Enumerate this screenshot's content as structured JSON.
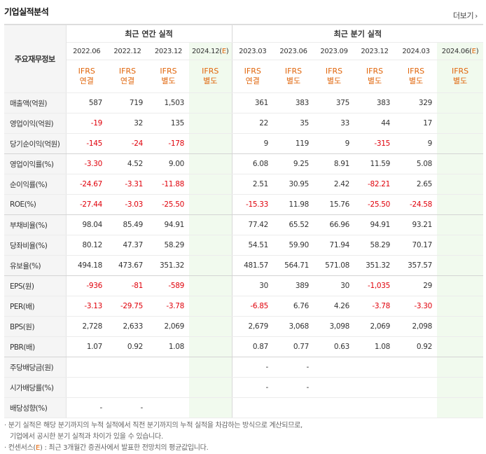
{
  "section_title": "기업실적분석",
  "more_link": "더보기",
  "header": {
    "row_label": "주요재무정보",
    "annual_group": "최근 연간 실적",
    "quarter_group": "최근 분기 실적",
    "annual_periods": [
      "2022.06",
      "2022.12",
      "2023.12",
      "2024.12(E)"
    ],
    "quarter_periods": [
      "2023.03",
      "2023.06",
      "2023.09",
      "2023.12",
      "2024.03",
      "2024.06(E)"
    ],
    "standards": [
      [
        "IFRS",
        "연결"
      ],
      [
        "IFRS",
        "연결"
      ],
      [
        "IFRS",
        "별도"
      ],
      [
        "IFRS",
        "별도"
      ],
      [
        "IFRS",
        "연결"
      ],
      [
        "IFRS",
        "별도"
      ],
      [
        "IFRS",
        "별도"
      ],
      [
        "IFRS",
        "별도"
      ],
      [
        "IFRS",
        "별도"
      ],
      [
        "IFRS",
        "별도"
      ]
    ]
  },
  "rows": [
    {
      "label": "매출액(억원)",
      "values": [
        "587",
        "719",
        "1,503",
        "",
        "361",
        "383",
        "375",
        "383",
        "329",
        ""
      ]
    },
    {
      "label": "영업이익(억원)",
      "values": [
        "-19",
        "32",
        "135",
        "",
        "22",
        "35",
        "33",
        "44",
        "17",
        ""
      ]
    },
    {
      "label": "당기순이익(억원)",
      "values": [
        "-145",
        "-24",
        "-178",
        "",
        "9",
        "119",
        "9",
        "-315",
        "9",
        ""
      ]
    },
    {
      "label": "영업이익률(%)",
      "values": [
        "-3.30",
        "4.52",
        "9.00",
        "",
        "6.08",
        "9.25",
        "8.91",
        "11.59",
        "5.08",
        ""
      ]
    },
    {
      "label": "순이익률(%)",
      "values": [
        "-24.67",
        "-3.31",
        "-11.88",
        "",
        "2.51",
        "30.95",
        "2.42",
        "-82.21",
        "2.65",
        ""
      ]
    },
    {
      "label": "ROE(%)",
      "values": [
        "-27.44",
        "-3.03",
        "-25.50",
        "",
        "-15.33",
        "11.98",
        "15.76",
        "-25.50",
        "-24.58",
        ""
      ]
    },
    {
      "label": "부채비율(%)",
      "values": [
        "98.04",
        "85.49",
        "94.91",
        "",
        "77.42",
        "65.52",
        "66.96",
        "94.91",
        "93.21",
        ""
      ]
    },
    {
      "label": "당좌비율(%)",
      "values": [
        "80.12",
        "47.37",
        "58.29",
        "",
        "54.51",
        "59.90",
        "71.94",
        "58.29",
        "70.17",
        ""
      ]
    },
    {
      "label": "유보율(%)",
      "values": [
        "494.18",
        "473.67",
        "351.32",
        "",
        "481.57",
        "564.71",
        "571.08",
        "351.32",
        "357.57",
        ""
      ]
    },
    {
      "label": "EPS(원)",
      "values": [
        "-936",
        "-81",
        "-589",
        "",
        "30",
        "389",
        "30",
        "-1,035",
        "29",
        ""
      ]
    },
    {
      "label": "PER(배)",
      "values": [
        "-3.13",
        "-29.75",
        "-3.78",
        "",
        "-6.85",
        "6.76",
        "4.26",
        "-3.78",
        "-3.30",
        ""
      ]
    },
    {
      "label": "BPS(원)",
      "values": [
        "2,728",
        "2,633",
        "2,069",
        "",
        "2,679",
        "3,068",
        "3,098",
        "2,069",
        "2,098",
        ""
      ]
    },
    {
      "label": "PBR(배)",
      "values": [
        "1.07",
        "0.92",
        "1.08",
        "",
        "0.87",
        "0.77",
        "0.63",
        "1.08",
        "0.92",
        ""
      ]
    },
    {
      "label": "주당배당금(원)",
      "values": [
        "",
        "",
        "",
        "",
        "-",
        "-",
        "",
        "",
        "",
        ""
      ]
    },
    {
      "label": "시가배당률(%)",
      "values": [
        "",
        "",
        "",
        "",
        "-",
        "-",
        "",
        "",
        "",
        ""
      ]
    },
    {
      "label": "배당성향(%)",
      "values": [
        "-",
        "-",
        "",
        "",
        "",
        "",
        "",
        "",
        "",
        ""
      ]
    }
  ],
  "notes": {
    "line1": "분기 실적은 해당 분기까지의 누적 실적에서 직전 분기까지의 누적 실적을 차감하는 방식으로 계산되므로,",
    "line2": "기업에서 공시한 분기 실적과 차이가 있을 수 있습니다.",
    "line3_prefix": "컨센서스(",
    "line3_e": "E",
    "line3_suffix": ") : 최근 3개월간 증권사에서 발표한 전망치의 평균값입니다."
  },
  "colors": {
    "negative": "#e0000a",
    "standard_label": "#e0650b",
    "estimate_bg": "#f1faee",
    "label_bg": "#f5f5f5"
  }
}
